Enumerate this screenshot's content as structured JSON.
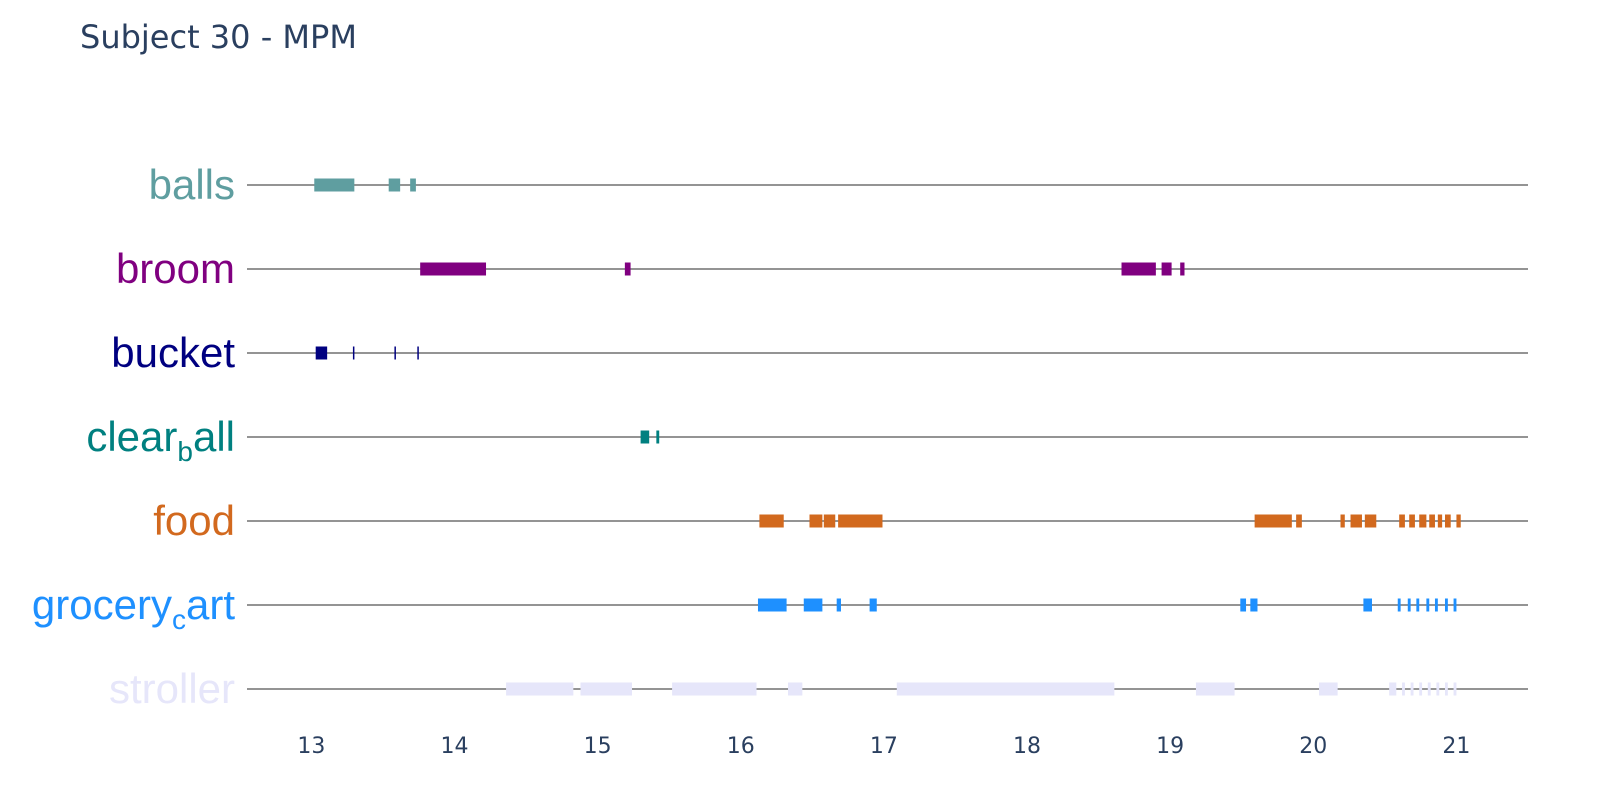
{
  "chart_data": {
    "type": "timeline",
    "title": "Subject 30 - MPM",
    "xlabel": "",
    "ylabel": "",
    "xlim": [
      12.55,
      21.5
    ],
    "xticks": [
      "13",
      "14",
      "15",
      "16",
      "17",
      "18",
      "19",
      "20",
      "21"
    ],
    "rows": [
      {
        "key": "balls",
        "label_main": "balls",
        "label_sub": "",
        "label_rest": "",
        "color": "#5f9ea0",
        "intervals": [
          [
            13.02,
            13.3
          ],
          [
            13.54,
            13.62
          ],
          [
            13.69,
            13.73
          ]
        ]
      },
      {
        "key": "broom",
        "label_main": "broom",
        "label_sub": "",
        "label_rest": "",
        "color": "#800080",
        "intervals": [
          [
            13.76,
            14.22
          ],
          [
            15.19,
            15.23
          ],
          [
            18.66,
            18.9
          ],
          [
            18.94,
            19.01
          ],
          [
            19.07,
            19.1
          ]
        ]
      },
      {
        "key": "bucket",
        "label_main": "bucket",
        "label_sub": "",
        "label_rest": "",
        "color": "#000080",
        "intervals": [
          [
            13.03,
            13.11
          ],
          [
            13.29,
            13.3
          ],
          [
            13.58,
            13.59
          ],
          [
            13.74,
            13.745
          ]
        ]
      },
      {
        "key": "clear_ball",
        "label_main": "clear",
        "label_sub": "b",
        "label_rest": "all",
        "color": "#008080",
        "intervals": [
          [
            15.3,
            15.36
          ],
          [
            15.41,
            15.43
          ]
        ]
      },
      {
        "key": "food",
        "label_main": "food",
        "label_sub": "",
        "label_rest": "",
        "color": "#d2691e",
        "intervals": [
          [
            16.13,
            16.3
          ],
          [
            16.48,
            16.57
          ],
          [
            16.58,
            16.66
          ],
          [
            16.68,
            16.99
          ],
          [
            19.59,
            19.85
          ],
          [
            19.88,
            19.92
          ],
          [
            20.19,
            20.22
          ],
          [
            20.26,
            20.34
          ],
          [
            20.36,
            20.44
          ],
          [
            20.6,
            20.64
          ],
          [
            20.67,
            20.71
          ],
          [
            20.74,
            20.79
          ],
          [
            20.81,
            20.85
          ],
          [
            20.87,
            20.9
          ],
          [
            20.92,
            20.96
          ],
          [
            21.0,
            21.03
          ]
        ]
      },
      {
        "key": "grocery_cart",
        "label_main": "grocery",
        "label_sub": "c",
        "label_rest": "art",
        "color": "#1e90ff",
        "intervals": [
          [
            16.12,
            16.32
          ],
          [
            16.44,
            16.57
          ],
          [
            16.67,
            16.7
          ],
          [
            16.9,
            16.95
          ],
          [
            19.49,
            19.53
          ],
          [
            19.56,
            19.61
          ],
          [
            20.35,
            20.41
          ],
          [
            20.59,
            20.61
          ],
          [
            20.66,
            20.68
          ],
          [
            20.72,
            20.74
          ],
          [
            20.79,
            20.81
          ],
          [
            20.85,
            20.87
          ],
          [
            20.92,
            20.94
          ],
          [
            20.98,
            21.0
          ]
        ]
      },
      {
        "key": "stroller",
        "label_main": "stroller",
        "label_sub": "",
        "label_rest": "",
        "color": "#e6e6fa",
        "intervals": [
          [
            14.36,
            14.83
          ],
          [
            14.88,
            15.24
          ],
          [
            15.52,
            16.11
          ],
          [
            16.33,
            16.43
          ],
          [
            17.09,
            18.61
          ],
          [
            19.18,
            19.45
          ],
          [
            20.04,
            20.17
          ],
          [
            20.53,
            20.58
          ],
          [
            20.62,
            20.64
          ],
          [
            20.68,
            20.7
          ],
          [
            20.74,
            20.76
          ],
          [
            20.8,
            20.82
          ],
          [
            20.86,
            20.88
          ],
          [
            20.92,
            20.94
          ],
          [
            20.98,
            21.0
          ]
        ]
      }
    ]
  }
}
